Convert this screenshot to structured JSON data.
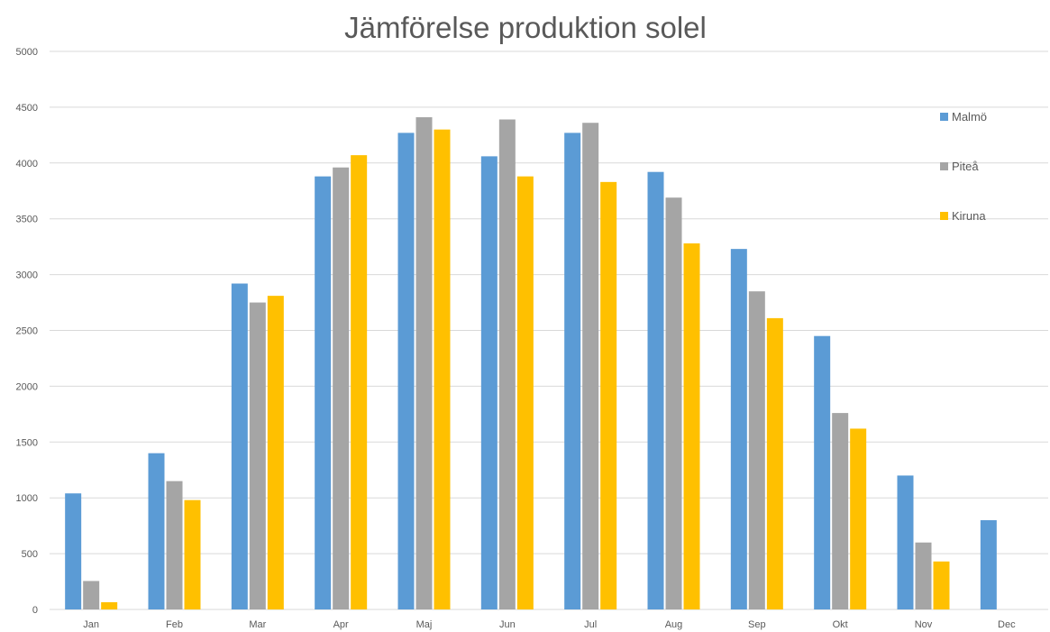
{
  "chart_data": {
    "type": "bar",
    "title": "Jämförelse produktion solel",
    "xlabel": "",
    "ylabel": "",
    "categories": [
      "Jan",
      "Feb",
      "Mar",
      "Apr",
      "Maj",
      "Jun",
      "Jul",
      "Aug",
      "Sep",
      "Okt",
      "Nov",
      "Dec"
    ],
    "ylim": [
      0,
      5000
    ],
    "yticks": [
      0,
      500,
      1000,
      1500,
      2000,
      2500,
      3000,
      3500,
      4000,
      4500,
      5000
    ],
    "grid": true,
    "legend_position": "right",
    "series": [
      {
        "name": "Malmö",
        "color": "#5b9bd5",
        "values": [
          1040,
          1400,
          2920,
          3880,
          4270,
          4060,
          4270,
          3920,
          3230,
          2450,
          1200,
          800
        ]
      },
      {
        "name": "Piteå",
        "color": "#a5a5a5",
        "values": [
          255,
          1150,
          2750,
          3960,
          4410,
          4390,
          4360,
          3690,
          2850,
          1760,
          600,
          0
        ]
      },
      {
        "name": "Kiruna",
        "color": "#ffc000",
        "values": [
          65,
          980,
          2810,
          4070,
          4300,
          3880,
          3830,
          3280,
          2610,
          1620,
          430,
          0
        ]
      }
    ]
  }
}
